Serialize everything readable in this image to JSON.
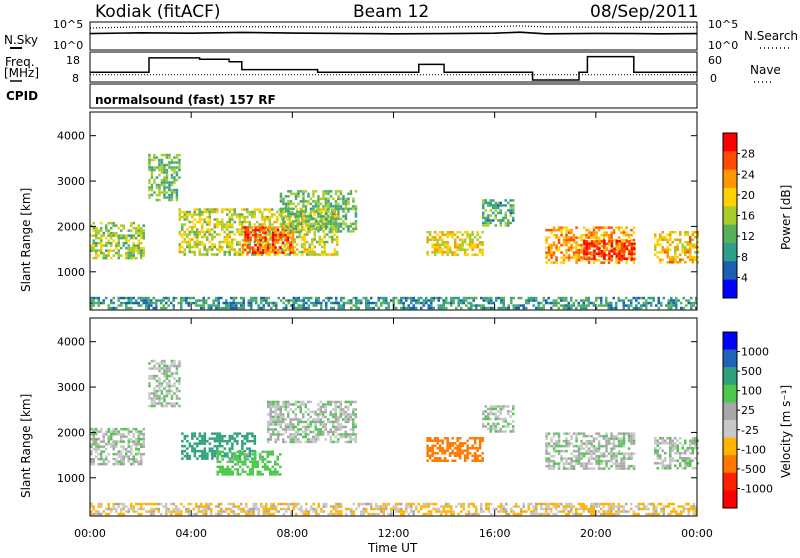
{
  "header": {
    "station": "Kodiak (fitACF)",
    "beam": "Beam 12",
    "date": "08/Sep/2011"
  },
  "top_panels": {
    "sky_label": "N.Sky",
    "search_label": "N.Search",
    "freq_label": "Freq.",
    "freq_unit": "[MHz]",
    "nave_label": "Nave",
    "cpid_label": "CPID",
    "cpid_value": "normalsound (fast) 157 RF",
    "noise_ticks_left": [
      "10^5",
      "10^0"
    ],
    "noise_ticks_right": [
      "10^5",
      "10^0"
    ],
    "freq_ticks": [
      "18",
      "8"
    ],
    "nave_ticks": [
      "60",
      "0"
    ]
  },
  "panels": {
    "ylabel": "Slant Range [km]",
    "yticks": [
      "4000",
      "3000",
      "2000",
      "1000"
    ],
    "xlabel": "Time UT",
    "xticks": [
      "00:00",
      "04:00",
      "08:00",
      "12:00",
      "16:00",
      "20:00",
      "00:00"
    ]
  },
  "colorbars": {
    "power_label": "Power [dB]",
    "power_ticks": [
      "28",
      "24",
      "20",
      "16",
      "12",
      "8",
      "4"
    ],
    "power_colors": [
      "#ff0000",
      "#ff4a00",
      "#ff9800",
      "#ffd200",
      "#a8cc2c",
      "#5ab05a",
      "#2f9e8a",
      "#1a5fb0",
      "#0000ff"
    ],
    "velocity_label": "Velocity [m s⁻¹]",
    "velocity_ticks": [
      "1000",
      "500",
      "100",
      "25",
      "-25",
      "-100",
      "-500",
      "-1000"
    ],
    "velocity_colors": [
      "#0000ff",
      "#1f63b8",
      "#2fa07c",
      "#4cc84c",
      "#a8a8a8",
      "#c8c8c8",
      "#ffb400",
      "#ff7800",
      "#ff2000",
      "#ff0000"
    ]
  },
  "chart_data": [
    {
      "type": "line",
      "title": "N.Sky / N.Search",
      "x": [
        "00:00",
        "02:00",
        "04:00",
        "06:00",
        "08:00",
        "10:00",
        "12:00",
        "14:00",
        "16:00",
        "17:00",
        "18:00",
        "20:00",
        "21:30",
        "22:30",
        "24:00"
      ],
      "series": [
        {
          "name": "N.Sky",
          "values": [
            1000,
            1500,
            1200,
            1800,
            1300,
            1100,
            900,
            1000,
            1200,
            2000,
            900,
            1100,
            1000,
            900,
            1000
          ]
        },
        {
          "name": "N.Search",
          "values": [
            15000,
            25000,
            30000,
            28000,
            26000,
            22000,
            21000,
            24000,
            30000,
            40000,
            25000,
            22000,
            20000,
            20000,
            22000
          ]
        }
      ],
      "ylim": [
        1,
        100000
      ],
      "yscale": "log"
    },
    {
      "type": "line",
      "x": [
        "00:00",
        "02:00",
        "02:20",
        "04:20",
        "05:30",
        "06:00",
        "09:00",
        "13:00",
        "13:20",
        "14:00",
        "17:00",
        "17:30",
        "19:20",
        "19:40",
        "21:30",
        "22:30",
        "24:00"
      ],
      "series": [
        {
          "name": "Freq.",
          "values": [
            11,
            11,
            16.5,
            16,
            15,
            12,
            11,
            14,
            14,
            11,
            11,
            8,
            11,
            17,
            11,
            11,
            11
          ]
        },
        {
          "name": "Nave",
          "values": [
            12,
            12,
            12,
            12,
            12,
            12,
            12,
            12,
            12,
            12,
            12,
            12,
            12,
            12,
            12,
            12,
            12
          ]
        }
      ],
      "ylim_freq": [
        8,
        18
      ],
      "ylim_nave": [
        0,
        60
      ]
    },
    {
      "type": "heatmap",
      "title": "Power [dB]",
      "xlabel": "Time UT",
      "ylabel": "Slant Range [km]",
      "xlim": [
        0,
        24
      ],
      "ylim": [
        180,
        4500
      ],
      "patches": [
        {
          "t0": 0.0,
          "t1": 2.1,
          "r0": 1300,
          "r1": 2100,
          "value": 14
        },
        {
          "t0": 2.3,
          "t1": 3.5,
          "r0": 2600,
          "r1": 3600,
          "value": 12
        },
        {
          "t0": 3.5,
          "t1": 9.8,
          "r0": 1400,
          "r1": 2400,
          "value": 16
        },
        {
          "t0": 6.0,
          "t1": 8.0,
          "r0": 1400,
          "r1": 2000,
          "value": 26
        },
        {
          "t0": 7.5,
          "t1": 10.5,
          "r0": 1900,
          "r1": 2800,
          "value": 12
        },
        {
          "t0": 13.3,
          "t1": 15.5,
          "r0": 1400,
          "r1": 1900,
          "value": 18
        },
        {
          "t0": 15.5,
          "t1": 16.7,
          "r0": 2000,
          "r1": 2600,
          "value": 10
        },
        {
          "t0": 18.0,
          "t1": 21.5,
          "r0": 1200,
          "r1": 2000,
          "value": 22
        },
        {
          "t0": 19.5,
          "t1": 21.5,
          "r0": 1300,
          "r1": 1700,
          "value": 28
        },
        {
          "t0": 22.3,
          "t1": 24.0,
          "r0": 1200,
          "r1": 1900,
          "value": 20
        },
        {
          "t0": 0.0,
          "t1": 24.0,
          "r0": 200,
          "r1": 450,
          "value": 8
        }
      ]
    },
    {
      "type": "heatmap",
      "title": "Velocity [m s⁻¹]",
      "xlabel": "Time UT",
      "ylabel": "Slant Range [km]",
      "xlim": [
        0,
        24
      ],
      "ylim": [
        180,
        4500
      ],
      "patches": [
        {
          "t0": 0.0,
          "t1": 2.1,
          "r0": 1300,
          "r1": 2100,
          "value": 0
        },
        {
          "t0": 2.3,
          "t1": 3.5,
          "r0": 2600,
          "r1": 3600,
          "value": 0
        },
        {
          "t0": 3.6,
          "t1": 6.5,
          "r0": 1400,
          "r1": 2000,
          "value": 300
        },
        {
          "t0": 5.0,
          "t1": 7.5,
          "r0": 1100,
          "r1": 1600,
          "value": 80
        },
        {
          "t0": 7.0,
          "t1": 10.5,
          "r0": 1800,
          "r1": 2700,
          "value": 0
        },
        {
          "t0": 13.3,
          "t1": 15.5,
          "r0": 1400,
          "r1": 1900,
          "value": -400
        },
        {
          "t0": 15.5,
          "t1": 16.7,
          "r0": 2000,
          "r1": 2600,
          "value": 0
        },
        {
          "t0": 18.0,
          "t1": 21.5,
          "r0": 1200,
          "r1": 2000,
          "value": 0
        },
        {
          "t0": 22.3,
          "t1": 24.0,
          "r0": 1200,
          "r1": 1900,
          "value": 0
        },
        {
          "t0": 0.0,
          "t1": 24.0,
          "r0": 200,
          "r1": 450,
          "value": -60
        }
      ]
    }
  ]
}
